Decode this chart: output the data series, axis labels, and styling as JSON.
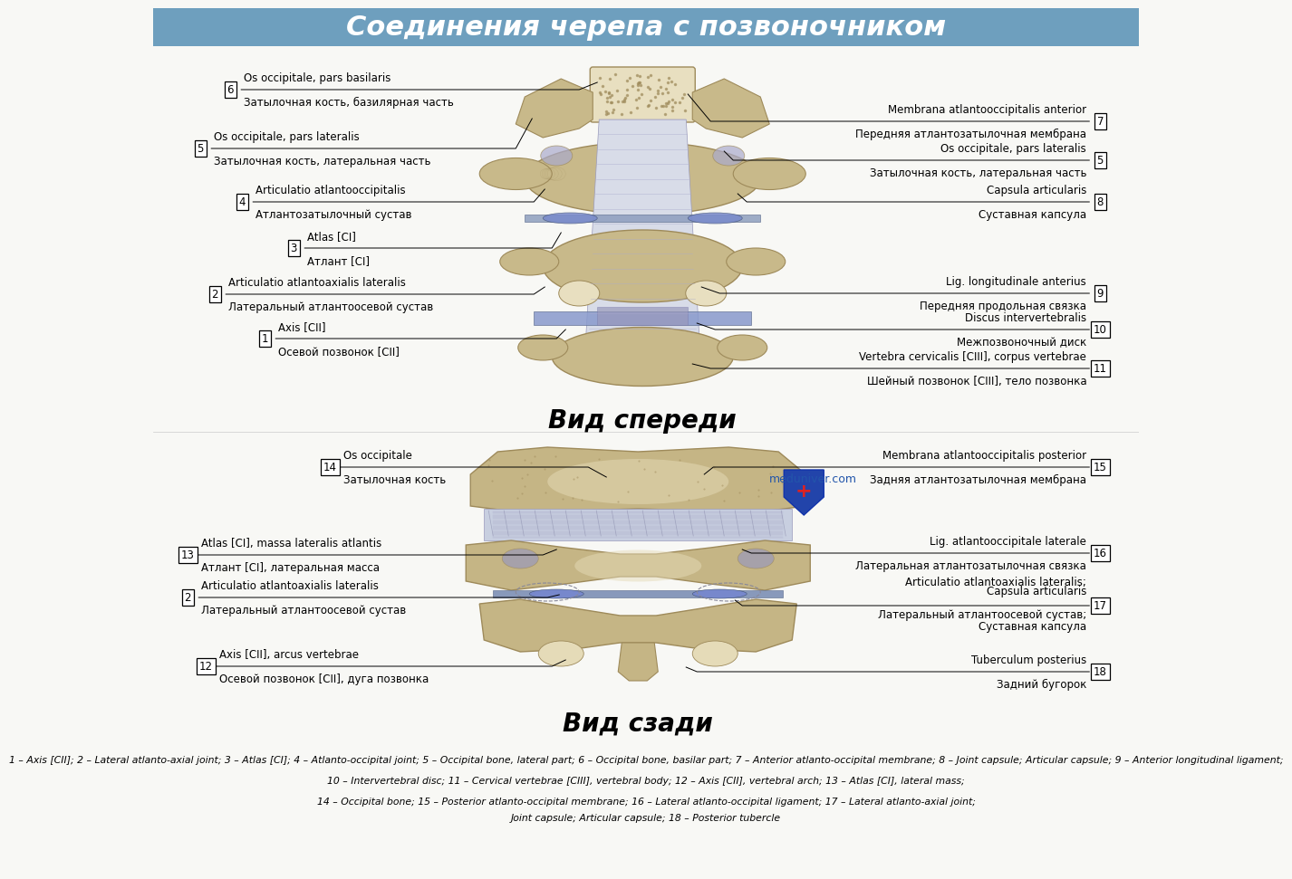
{
  "title": "Соединения черепа с позвоночником",
  "bg_color": "#f5f5f0",
  "title_bg": "#6e9fbe",
  "vid_spereди": "Вид спереди",
  "vid_szadi": "Вид сзади",
  "footer_line1": "1 – Axis [CII]; 2 – Lateral atlanto-axial joint; 3 – Atlas [CI]; 4 – Atlanto-occipital joint; 5 – Occipital bone, lateral part; 6 – Occipital bone, basilar part; 7 – Anterior atlanto-occipital membrane; 8 – Joint capsule; Articular capsule; 9 – Anterior longitudinal ligament;",
  "footer_line2": "10 – Intervertebral disc; 11 – Cervical vertebrae [CIII], vertebral body; 12 – Axis [CII], vertebral arch; 13 – Atlas [CI], lateral mass;",
  "footer_line3": "14 – Occipital bone; 15 – Posterior atlanto-occipital membrane; 16 – Lateral atlanto-occipital ligament; 17 – Lateral atlanto-axial joint;",
  "footer_line4": "Joint capsule; Articular capsule; 18 – Posterior tubercle",
  "bone_color": "#c8b98a",
  "bone_dark": "#9e8a5a",
  "bone_light": "#e8dfc0",
  "ligament_color": "#c8cfe0",
  "disc_color": "#8899bb",
  "membrane_color": "#d0d8e8"
}
